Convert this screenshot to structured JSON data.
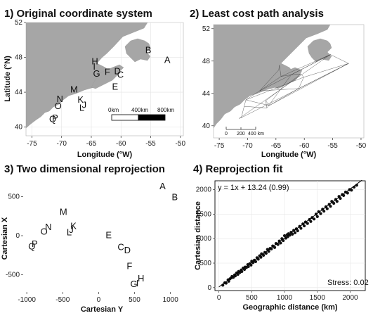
{
  "panels": {
    "p1": {
      "title": "1) Original coordinate system",
      "xlabel": "Longitude (°W)",
      "ylabel": "Latitude (°N)",
      "xticks": [
        -75,
        -70,
        -65,
        -60,
        -55,
        -50
      ],
      "yticks": [
        40,
        44,
        48,
        52
      ],
      "scalebar": [
        "0km",
        "400km",
        "800km"
      ]
    },
    "p2": {
      "title": "2) Least cost path analysis",
      "xlabel": "Longitude (°W)",
      "xticks": [
        -75,
        -70,
        -65,
        -60,
        -55,
        -50
      ],
      "yticks": [
        40,
        44,
        48,
        52
      ],
      "scalebar": [
        "0",
        "200",
        "400 km"
      ]
    },
    "p3": {
      "title": "3) Two dimensional reprojection",
      "xlabel": "Cartesian Y",
      "ylabel": "Cartesian X",
      "xticks": [
        -1000,
        -500,
        0,
        500,
        1000
      ],
      "yticks": [
        500,
        0,
        -500
      ]
    },
    "p4": {
      "title": "4) Reprojection fit",
      "xlabel": "Geographic distance (km)",
      "ylabel": "Cartesian distance",
      "xticks": [
        0,
        500,
        1000,
        1500,
        2000
      ],
      "yticks": [
        0,
        500,
        1000,
        1500,
        2000
      ],
      "equation": "y = 1x + 13.24 (0.99)",
      "stress": "Stress: 0.02"
    }
  },
  "chart_data": [
    {
      "type": "scatter",
      "title": "1) Original coordinate system",
      "xlabel": "Longitude (°W)",
      "ylabel": "Latitude (°N)",
      "xlim": [
        -76,
        -49.5
      ],
      "ylim": [
        39,
        52
      ],
      "points": [
        {
          "label": "A",
          "x": -52.2,
          "y": 47.7
        },
        {
          "label": "B",
          "x": -55.4,
          "y": 48.8
        },
        {
          "label": "C",
          "x": -60.1,
          "y": 46.0
        },
        {
          "label": "D",
          "x": -60.6,
          "y": 46.4
        },
        {
          "label": "E",
          "x": -61.0,
          "y": 44.6
        },
        {
          "label": "F",
          "x": -62.3,
          "y": 46.3
        },
        {
          "label": "G",
          "x": -64.1,
          "y": 46.1
        },
        {
          "label": "H",
          "x": -64.4,
          "y": 47.5
        },
        {
          "label": "I",
          "x": -64.5,
          "y": 46.9
        },
        {
          "label": "J",
          "x": -66.2,
          "y": 42.5
        },
        {
          "label": "K",
          "x": -66.8,
          "y": 43.1
        },
        {
          "label": "L",
          "x": -66.6,
          "y": 42.2
        },
        {
          "label": "M",
          "x": -67.9,
          "y": 44.3
        },
        {
          "label": "N",
          "x": -70.3,
          "y": 43.2
        },
        {
          "label": "O",
          "x": -70.6,
          "y": 42.4
        },
        {
          "label": "P",
          "x": -71.1,
          "y": 41.0
        },
        {
          "label": "Q",
          "x": -71.5,
          "y": 40.9
        }
      ]
    },
    {
      "type": "scatter",
      "title": "2) Least cost path analysis",
      "xlabel": "Longitude (°W)",
      "xlim": [
        -76,
        -49.5
      ],
      "ylim": [
        38.5,
        52.5
      ],
      "note": "network of least-cost paths between sites A–Q"
    },
    {
      "type": "scatter",
      "title": "3) Two dimensional reprojection",
      "xlabel": "Cartesian Y",
      "ylabel": "Cartesian X",
      "xlim": [
        -1050,
        1150
      ],
      "ylim": [
        -720,
        720
      ],
      "points": [
        {
          "label": "A",
          "x": 890,
          "y": 630
        },
        {
          "label": "B",
          "x": 1060,
          "y": 490
        },
        {
          "label": "C",
          "x": 310,
          "y": -150
        },
        {
          "label": "D",
          "x": 400,
          "y": -190
        },
        {
          "label": "E",
          "x": 140,
          "y": 5
        },
        {
          "label": "F",
          "x": 430,
          "y": -390
        },
        {
          "label": "G",
          "x": 490,
          "y": -620
        },
        {
          "label": "H",
          "x": 590,
          "y": -550
        },
        {
          "label": "I",
          "x": 540,
          "y": -610
        },
        {
          "label": "J",
          "x": -380,
          "y": 70
        },
        {
          "label": "K",
          "x": -350,
          "y": 120
        },
        {
          "label": "L",
          "x": -410,
          "y": 40
        },
        {
          "label": "M",
          "x": -490,
          "y": 300
        },
        {
          "label": "N",
          "x": -700,
          "y": 110
        },
        {
          "label": "O",
          "x": -760,
          "y": 50
        },
        {
          "label": "P",
          "x": -890,
          "y": -110
        },
        {
          "label": "Q",
          "x": -930,
          "y": -140
        }
      ]
    },
    {
      "type": "scatter",
      "title": "4) Reprojection fit",
      "xlabel": "Geographic distance (km)",
      "ylabel": "Cartesian distance",
      "xlim": [
        -60,
        2230
      ],
      "ylim": [
        -60,
        2180
      ],
      "fit": {
        "slope": 1,
        "intercept": 13.24,
        "r2": 0.99
      },
      "stress": 0.02,
      "points_x": [
        60,
        90,
        110,
        140,
        150,
        170,
        190,
        200,
        220,
        240,
        250,
        270,
        290,
        300,
        320,
        340,
        350,
        370,
        390,
        400,
        420,
        440,
        450,
        470,
        490,
        500,
        520,
        540,
        560,
        580,
        600,
        620,
        640,
        650,
        680,
        700,
        720,
        740,
        760,
        780,
        800,
        820,
        850,
        870,
        900,
        920,
        940,
        960,
        980,
        1000,
        1020,
        1040,
        1050,
        1060,
        1080,
        1100,
        1120,
        1140,
        1160,
        1180,
        1200,
        1230,
        1250,
        1280,
        1300,
        1320,
        1350,
        1380,
        1400,
        1420,
        1450,
        1480,
        1500,
        1520,
        1550,
        1580,
        1600,
        1630,
        1650,
        1680,
        1700,
        1720,
        1750,
        1780,
        1800,
        1830,
        1850,
        1880,
        1900,
        1930,
        1960,
        1990,
        2020,
        2060,
        2100
      ],
      "points_y": [
        50,
        100,
        90,
        160,
        130,
        180,
        200,
        230,
        210,
        260,
        240,
        300,
        270,
        330,
        310,
        360,
        330,
        400,
        370,
        420,
        410,
        470,
        430,
        490,
        460,
        540,
        510,
        560,
        530,
        610,
        580,
        650,
        620,
        690,
        660,
        720,
        700,
        780,
        740,
        800,
        790,
        850,
        820,
        900,
        880,
        950,
        910,
        1000,
        960,
        1060,
        1010,
        1080,
        1040,
        1100,
        1070,
        1130,
        1090,
        1170,
        1120,
        1200,
        1160,
        1250,
        1210,
        1300,
        1260,
        1340,
        1310,
        1390,
        1350,
        1430,
        1400,
        1500,
        1450,
        1550,
        1510,
        1600,
        1560,
        1650,
        1610,
        1700,
        1660,
        1760,
        1720,
        1800,
        1760,
        1860,
        1820,
        1900,
        1880,
        1950,
        1930,
        2000,
        1990,
        2050,
        2090
      ]
    }
  ]
}
